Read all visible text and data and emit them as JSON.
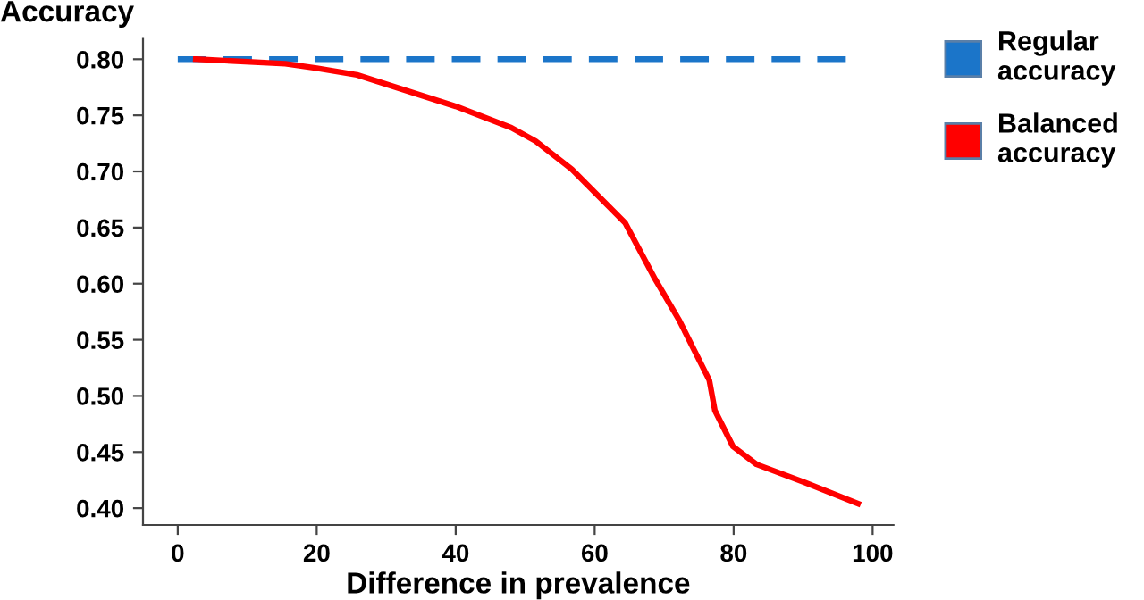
{
  "chart_data": {
    "type": "line",
    "xlabel": "Difference in prevalence",
    "ylabel": "Accuracy",
    "xlim": [
      -5,
      103
    ],
    "ylim": [
      0.385,
      0.818
    ],
    "xticks": [
      0,
      20,
      40,
      60,
      80,
      100
    ],
    "yticks": [
      {
        "value": 0.4,
        "label": "0.40"
      },
      {
        "value": 0.45,
        "label": "0.45"
      },
      {
        "value": 0.5,
        "label": "0.50"
      },
      {
        "value": 0.55,
        "label": "0.55"
      },
      {
        "value": 0.6,
        "label": "0.60"
      },
      {
        "value": 0.65,
        "label": "0.65"
      },
      {
        "value": 0.7,
        "label": "0.70"
      },
      {
        "value": 0.75,
        "label": "0.75"
      },
      {
        "value": 0.8,
        "label": "0.80"
      }
    ],
    "grid": false,
    "legend": "right",
    "marker": "none",
    "series": [
      {
        "name": "Regular accuracy",
        "color": "#1b75c9",
        "line_style": "dashed",
        "x": [
          0,
          97
        ],
        "values": [
          0.8,
          0.8
        ]
      },
      {
        "name": "Balanced accuracy",
        "color": "#ff0000",
        "line_style": "solid",
        "x": [
          2.6,
          15.5,
          20,
          25.8,
          40,
          48,
          51.5,
          56.7,
          64.4,
          68.7,
          72.2,
          76.5,
          77.3,
          79.9,
          83.3,
          90.2,
          97.9
        ],
        "values": [
          0.8,
          0.796,
          0.792,
          0.786,
          0.758,
          0.739,
          0.727,
          0.702,
          0.654,
          0.604,
          0.567,
          0.514,
          0.487,
          0.455,
          0.439,
          0.423,
          0.404
        ]
      }
    ]
  }
}
